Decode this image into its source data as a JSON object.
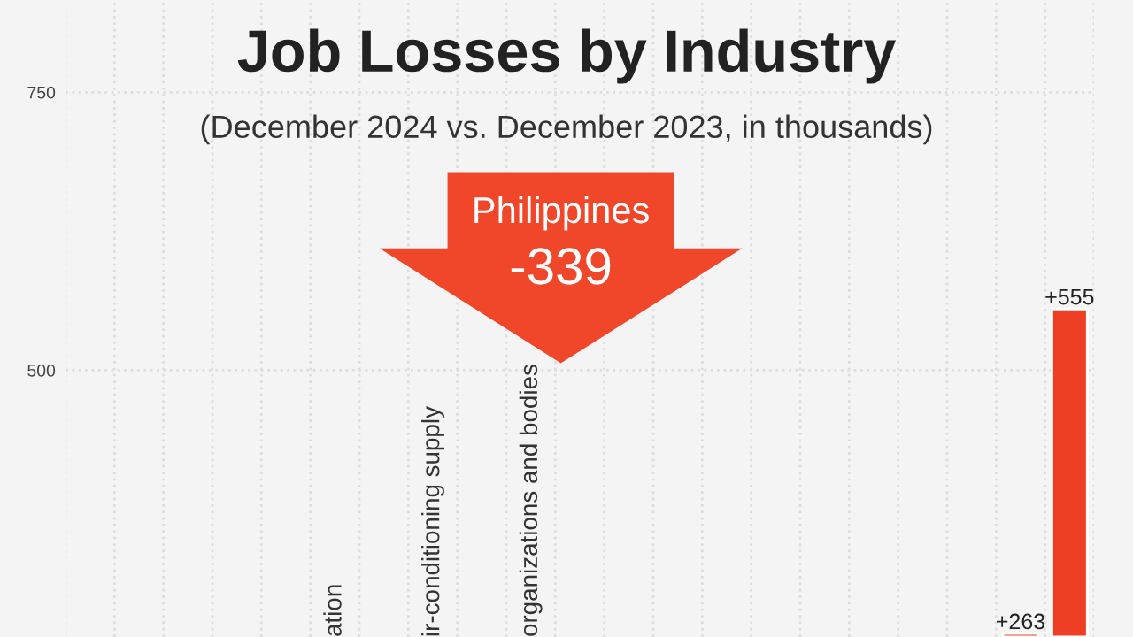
{
  "chart_data": {
    "type": "bar",
    "title": "Job Losses by Industry",
    "subtitle": "(December 2024 vs. December 2023, in thousands)",
    "categories": [
      null,
      null,
      null,
      null,
      null,
      "ation",
      null,
      "ir-conditioning supply",
      null,
      "organizations and bodies",
      null,
      null,
      null,
      null,
      null,
      null,
      null,
      null,
      null,
      null,
      null
    ],
    "values": [
      null,
      null,
      null,
      null,
      null,
      null,
      null,
      null,
      null,
      null,
      null,
      null,
      null,
      null,
      null,
      null,
      null,
      null,
      null,
      263,
      555
    ],
    "value_labels": [
      null,
      null,
      null,
      null,
      null,
      null,
      null,
      null,
      null,
      null,
      null,
      null,
      null,
      null,
      null,
      null,
      null,
      null,
      null,
      "+263",
      "+555"
    ],
    "color": "#ef3e26",
    "ylim": [
      260,
      833
    ],
    "yticks": [
      500,
      750
    ],
    "grid": true,
    "annotations": [
      "Philippines",
      "-339"
    ]
  }
}
